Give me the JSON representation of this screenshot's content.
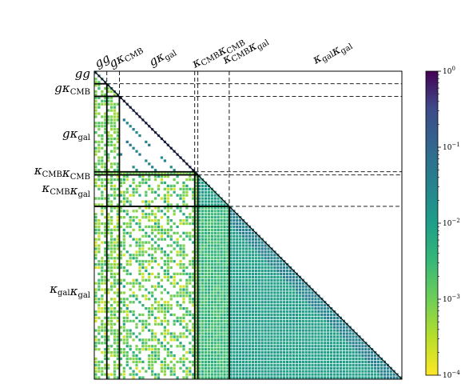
{
  "chart_data": {
    "type": "heatmap",
    "title": "",
    "matrix": "lower-triangular covariance / correlation matrix of binned power spectra",
    "blocks": [
      {
        "label_main": "gg",
        "label_sub": "",
        "size": 4
      },
      {
        "label_main": "gκ",
        "label_sub": "CMB",
        "size": 4
      },
      {
        "label_main": "gκ",
        "label_sub": "gal",
        "size": 24
      },
      {
        "label_main": "κ",
        "label_sub": "CMB",
        "label_main2": "κ",
        "label_sub2": "CMB",
        "size": 1
      },
      {
        "label_main": "κ",
        "label_sub": "CMB",
        "label_main2": "κ",
        "label_sub2": "gal",
        "size": 10
      },
      {
        "label_main": "κ",
        "label_sub": "gal",
        "label_main2": "κ",
        "label_sub2": "gal",
        "size": 55
      }
    ],
    "row_labels_text": [
      "gg",
      "gκCMB",
      "gκgal",
      "κCMBκCMB",
      "κCMBκgal",
      "κgalκgal"
    ],
    "column_labels_text": [
      "gg",
      "gκCMB",
      "gκgal",
      "κCMBκCMB",
      "κCMBκgal",
      "κgalκgal"
    ],
    "colorbar": {
      "scale": "log",
      "colormap": "viridis_r",
      "range": [
        0.0001,
        1
      ],
      "ticks": [
        {
          "base": "10",
          "exp": "0"
        },
        {
          "base": "10",
          "exp": "−1"
        },
        {
          "base": "10",
          "exp": "−2"
        },
        {
          "base": "10",
          "exp": "−3"
        },
        {
          "base": "10",
          "exp": "−4"
        }
      ]
    },
    "block_level_log10": {
      "kgal_kgal_near_diag": -1.5,
      "kgal_kgal_far": -2.0,
      "kcmbkgal_kcmbkgal": -2.0,
      "kgal_cross_kcmbkgal": -2.5,
      "gkgal_offdiag_bands": -1.5,
      "cross_with_g_blocks": -3.0,
      "g_cross_low_values": -3.7
    },
    "gridlines": "dashed block boundaries in upper triangle, solid block boundaries in lower triangle"
  }
}
